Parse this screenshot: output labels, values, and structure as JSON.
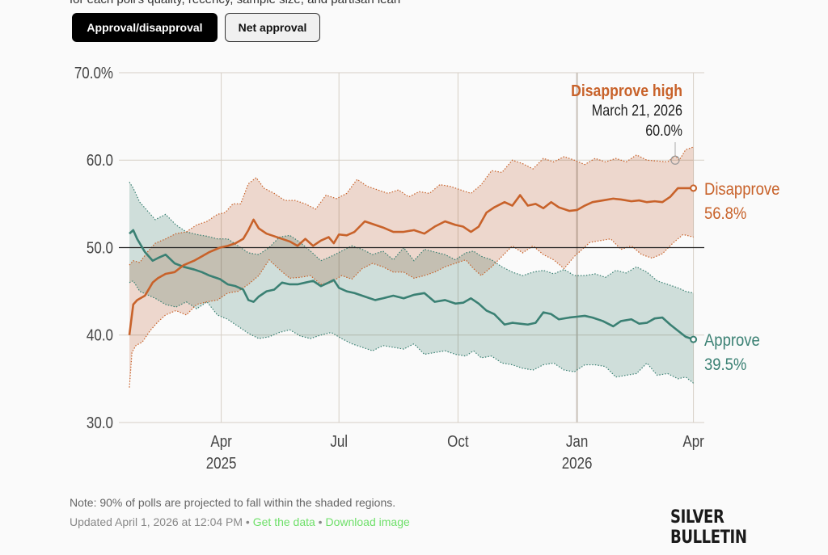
{
  "header": {
    "subtitle": "for each poll's quality, recency, sample size, and partisan lean"
  },
  "toggles": [
    {
      "label": "Approval/disapproval",
      "active": true
    },
    {
      "label": "Net approval",
      "active": false
    }
  ],
  "annotation": {
    "title": "Disapprove high",
    "date": "March 21, 2026",
    "value": "60.0%"
  },
  "end_labels": {
    "disapprove": {
      "name": "Disapprove",
      "value": "56.8%"
    },
    "approve": {
      "name": "Approve",
      "value": "39.5%"
    }
  },
  "footer": {
    "note": "Note: 90% of polls are projected to fall within the shaded regions.",
    "updated": "Updated April 1, 2026 at 12:04 PM",
    "sep": " • ",
    "get_data": "Get the data",
    "download": "Download image",
    "logo": "SILVER BULLETIN"
  },
  "colors": {
    "approve": "#3a8073",
    "disapprove": "#c8622a",
    "approve_band": "#d3e3df",
    "disapprove_band": "#f2dcd1",
    "overlap_band": "#d4c9bb"
  },
  "chart_data": {
    "type": "line",
    "title": "",
    "xlabel": "",
    "ylabel": "",
    "ylim": [
      30,
      70
    ],
    "yticks": [
      "70.0%",
      "60.0",
      "50.0",
      "40.0",
      "30.0"
    ],
    "ytick_values": [
      70,
      60,
      50,
      40,
      30
    ],
    "xticks": [
      {
        "label": "Apr",
        "sub": "2025",
        "day": 71
      },
      {
        "label": "Jul",
        "sub": "",
        "day": 162
      },
      {
        "label": "Oct",
        "sub": "",
        "day": 254
      },
      {
        "label": "Jan",
        "sub": "2026",
        "day": 346
      },
      {
        "label": "Apr",
        "sub": "",
        "day": 436
      }
    ],
    "x_unit": "days since Jan 20, 2025",
    "xlim": [
      0,
      443
    ],
    "reference_line": 50,
    "grid": true,
    "highlight": {
      "series": "Disapprove upper band",
      "day": 425,
      "value": 60.0
    },
    "series": [
      {
        "name": "Disapprove",
        "x": [
          0,
          3,
          6,
          12,
          18,
          22,
          28,
          35,
          42,
          50,
          56,
          62,
          70,
          76,
          82,
          88,
          92,
          96,
          100,
          106,
          112,
          118,
          124,
          130,
          136,
          142,
          148,
          154,
          158,
          162,
          168,
          174,
          182,
          190,
          196,
          204,
          212,
          220,
          228,
          236,
          244,
          252,
          258,
          264,
          270,
          276,
          282,
          290,
          296,
          302,
          308,
          314,
          320,
          326,
          332,
          340,
          346,
          352,
          358,
          366,
          374,
          380,
          388,
          394,
          400,
          406,
          412,
          418,
          424,
          430,
          436
        ],
        "values": [
          40.0,
          43.5,
          44.0,
          44.5,
          46.0,
          46.5,
          47.0,
          47.2,
          48.0,
          48.5,
          49.0,
          49.5,
          50.0,
          50.2,
          50.5,
          51.0,
          52.0,
          53.2,
          52.2,
          51.6,
          51.3,
          51.0,
          50.7,
          50.2,
          51.0,
          50.2,
          50.8,
          51.2,
          50.5,
          51.5,
          51.4,
          51.8,
          53.0,
          52.6,
          52.3,
          51.8,
          51.8,
          52.0,
          51.6,
          52.4,
          53.0,
          52.6,
          52.4,
          51.8,
          52.4,
          54.0,
          54.6,
          55.2,
          54.8,
          56.0,
          54.8,
          55.0,
          54.5,
          55.2,
          54.6,
          54.2,
          54.3,
          54.8,
          55.2,
          55.4,
          55.6,
          55.5,
          55.3,
          55.4,
          55.2,
          55.3,
          55.2,
          55.8,
          56.8,
          56.8,
          56.8
        ]
      },
      {
        "name": "Approve",
        "x": [
          0,
          3,
          6,
          12,
          18,
          22,
          28,
          35,
          42,
          50,
          56,
          62,
          70,
          76,
          82,
          88,
          92,
          96,
          100,
          106,
          112,
          118,
          124,
          130,
          136,
          142,
          148,
          154,
          158,
          162,
          168,
          174,
          182,
          190,
          196,
          204,
          212,
          220,
          228,
          236,
          244,
          252,
          258,
          264,
          270,
          276,
          282,
          290,
          296,
          302,
          308,
          314,
          320,
          326,
          332,
          340,
          346,
          352,
          358,
          366,
          374,
          380,
          388,
          394,
          400,
          406,
          412,
          418,
          424,
          430,
          436
        ],
        "values": [
          51.6,
          52.0,
          51.0,
          49.5,
          48.5,
          48.8,
          49.2,
          48.2,
          47.8,
          47.5,
          47.2,
          46.8,
          46.4,
          45.8,
          45.6,
          45.2,
          44.0,
          43.8,
          44.4,
          45.0,
          45.2,
          46.0,
          45.8,
          45.8,
          46.0,
          46.2,
          45.6,
          46.0,
          46.3,
          45.4,
          45.0,
          44.8,
          44.4,
          44.0,
          44.2,
          44.5,
          44.2,
          44.6,
          44.8,
          43.8,
          44.0,
          43.6,
          43.7,
          44.2,
          43.6,
          42.8,
          42.4,
          41.2,
          41.4,
          41.3,
          41.2,
          41.4,
          42.6,
          42.4,
          41.8,
          42.0,
          42.1,
          42.2,
          42.0,
          41.6,
          41.0,
          41.6,
          41.8,
          41.3,
          41.4,
          41.9,
          42.0,
          41.2,
          40.5,
          39.8,
          39.5
        ]
      },
      {
        "name": "Disapprove upper band",
        "x": [
          0,
          3,
          8,
          14,
          20,
          28,
          36,
          44,
          52,
          60,
          68,
          74,
          80,
          86,
          92,
          98,
          104,
          112,
          120,
          128,
          136,
          144,
          152,
          160,
          168,
          176,
          184,
          192,
          200,
          208,
          216,
          224,
          232,
          240,
          248,
          256,
          264,
          272,
          280,
          288,
          296,
          304,
          312,
          320,
          328,
          336,
          344,
          352,
          360,
          368,
          376,
          384,
          392,
          400,
          408,
          416,
          422,
          425,
          430,
          436
        ],
        "values": [
          48.0,
          48.5,
          48.3,
          49.5,
          50.5,
          51.0,
          51.6,
          51.8,
          52.6,
          53.0,
          53.8,
          54.0,
          55.0,
          55.0,
          57.3,
          58.0,
          56.8,
          56.2,
          55.4,
          55.4,
          55.0,
          54.4,
          56.0,
          55.6,
          56.2,
          57.8,
          57.0,
          56.6,
          56.2,
          56.6,
          55.8,
          56.4,
          56.2,
          57.2,
          57.0,
          56.6,
          56.2,
          57.2,
          58.8,
          58.6,
          60.0,
          59.6,
          59.0,
          60.2,
          59.8,
          60.4,
          60.0,
          59.5,
          60.2,
          59.8,
          60.2,
          59.8,
          60.6,
          60.0,
          59.9,
          59.8,
          60.5,
          60.0,
          61.2,
          61.5
        ]
      },
      {
        "name": "Disapprove lower band",
        "x": [
          0,
          2,
          5,
          10,
          16,
          22,
          28,
          36,
          44,
          52,
          60,
          68,
          76,
          84,
          92,
          100,
          108,
          116,
          124,
          132,
          140,
          148,
          156,
          164,
          172,
          180,
          188,
          196,
          204,
          212,
          220,
          228,
          236,
          244,
          252,
          260,
          266,
          272,
          280,
          288,
          296,
          304,
          312,
          320,
          328,
          336,
          344,
          350,
          356,
          364,
          372,
          380,
          388,
          396,
          404,
          412,
          420,
          428,
          436
        ],
        "values": [
          34.0,
          38.0,
          38.8,
          39.2,
          40.5,
          41.5,
          42.3,
          42.8,
          42.3,
          43.5,
          43.8,
          44.0,
          44.8,
          45.0,
          45.8,
          46.8,
          48.6,
          47.5,
          46.5,
          46.6,
          46.8,
          45.8,
          46.0,
          46.8,
          46.4,
          47.6,
          48.2,
          47.8,
          47.2,
          47.2,
          46.5,
          46.8,
          47.2,
          47.8,
          48.2,
          48.6,
          47.6,
          46.8,
          47.8,
          49.0,
          50.2,
          49.4,
          50.2,
          49.2,
          48.6,
          47.6,
          49.0,
          49.8,
          50.6,
          50.8,
          51.0,
          49.8,
          50.2,
          49.2,
          48.8,
          49.3,
          50.5,
          51.5,
          51.2
        ]
      },
      {
        "name": "Approve upper band",
        "x": [
          0,
          3,
          8,
          14,
          20,
          28,
          36,
          44,
          52,
          60,
          68,
          76,
          84,
          92,
          100,
          108,
          116,
          124,
          132,
          140,
          148,
          156,
          164,
          172,
          180,
          188,
          196,
          204,
          212,
          220,
          228,
          236,
          244,
          252,
          260,
          266,
          272,
          280,
          288,
          296,
          304,
          312,
          320,
          328,
          336,
          344,
          352,
          360,
          368,
          376,
          384,
          392,
          400,
          408,
          416,
          424,
          430,
          436
        ],
        "values": [
          57.5,
          56.8,
          55.2,
          54.2,
          53.2,
          53.8,
          52.6,
          51.8,
          51.5,
          51.3,
          51.0,
          51.0,
          50.2,
          49.4,
          49.2,
          50.0,
          51.2,
          51.4,
          50.6,
          49.6,
          48.5,
          49.0,
          49.6,
          50.2,
          49.8,
          49.2,
          49.6,
          48.6,
          50.0,
          48.5,
          49.8,
          49.5,
          49.2,
          48.6,
          49.4,
          49.6,
          49.0,
          48.6,
          47.8,
          47.2,
          46.8,
          47.2,
          47.4,
          47.0,
          47.5,
          46.8,
          46.8,
          47.0,
          46.6,
          47.4,
          47.1,
          47.8,
          47.2,
          46.2,
          45.8,
          45.4,
          45.0,
          44.8
        ]
      },
      {
        "name": "Approve lower band",
        "x": [
          0,
          3,
          8,
          14,
          20,
          28,
          36,
          44,
          52,
          60,
          68,
          76,
          84,
          92,
          100,
          108,
          116,
          124,
          132,
          140,
          148,
          156,
          164,
          172,
          180,
          188,
          196,
          204,
          212,
          220,
          228,
          236,
          244,
          252,
          260,
          266,
          272,
          280,
          288,
          296,
          304,
          312,
          320,
          328,
          336,
          344,
          352,
          360,
          368,
          376,
          384,
          392,
          400,
          408,
          416,
          424,
          430,
          436
        ],
        "values": [
          46.0,
          46.2,
          45.0,
          44.6,
          44.2,
          43.5,
          43.2,
          43.8,
          43.0,
          43.8,
          42.3,
          41.8,
          41.0,
          40.2,
          39.6,
          39.8,
          40.3,
          40.6,
          39.9,
          39.6,
          40.0,
          40.3,
          39.6,
          39.0,
          38.6,
          38.2,
          38.8,
          38.6,
          38.4,
          39.0,
          37.8,
          38.0,
          38.2,
          37.8,
          37.6,
          38.2,
          37.4,
          37.6,
          36.8,
          36.6,
          36.2,
          36.0,
          36.6,
          36.8,
          36.0,
          35.8,
          36.6,
          36.6,
          36.4,
          35.2,
          35.4,
          35.6,
          36.8,
          35.4,
          35.6,
          35.0,
          35.2,
          34.5
        ]
      }
    ]
  }
}
